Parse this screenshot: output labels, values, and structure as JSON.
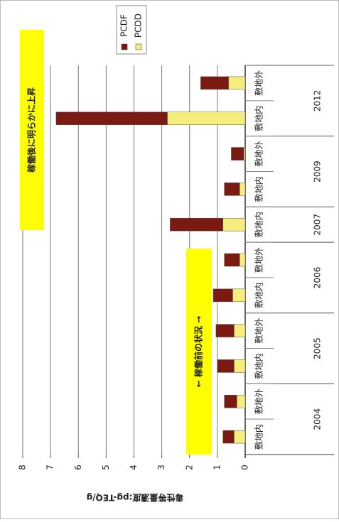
{
  "chart_data": {
    "type": "bar",
    "stacked": true,
    "y_label": "毒性等量濃度:pg-TEQ/g",
    "groups": [
      {
        "name": "2004",
        "categories": [
          "敷地内",
          "敷地外"
        ]
      },
      {
        "name": "2005",
        "categories": [
          "敷地内",
          "敷地外"
        ]
      },
      {
        "name": "2006",
        "categories": [
          "敷地内",
          "敷地外"
        ]
      },
      {
        "name": "2007",
        "categories": [
          "敷地内"
        ]
      },
      {
        "name": "2009",
        "categories": [
          "敷地内",
          "敷地外"
        ]
      },
      {
        "name": "2012",
        "categories": [
          "敷地内",
          "敷地外"
        ]
      }
    ],
    "series": [
      {
        "name": "PCDD",
        "color": "#f6ee7c",
        "values": [
          0.4,
          0.3,
          0.4,
          0.4,
          0.45,
          0.2,
          0.8,
          0.2,
          0.05,
          2.8,
          0.6
        ]
      },
      {
        "name": "PCDF",
        "color": "#7a1a12",
        "values": [
          0.4,
          0.45,
          0.6,
          0.65,
          0.7,
          0.55,
          1.9,
          0.55,
          0.45,
          4.0,
          1.0
        ]
      }
    ],
    "legend_order": [
      "PCDF",
      "PCDD"
    ],
    "ylim": [
      0,
      8
    ],
    "yticks": [
      0,
      1,
      2,
      3,
      4,
      5,
      6,
      7,
      8
    ],
    "grid": true,
    "annotations": [
      {
        "text": "稼働後に明らかに上昇"
      },
      {
        "text": "← 稼働前の状況 →"
      }
    ]
  }
}
